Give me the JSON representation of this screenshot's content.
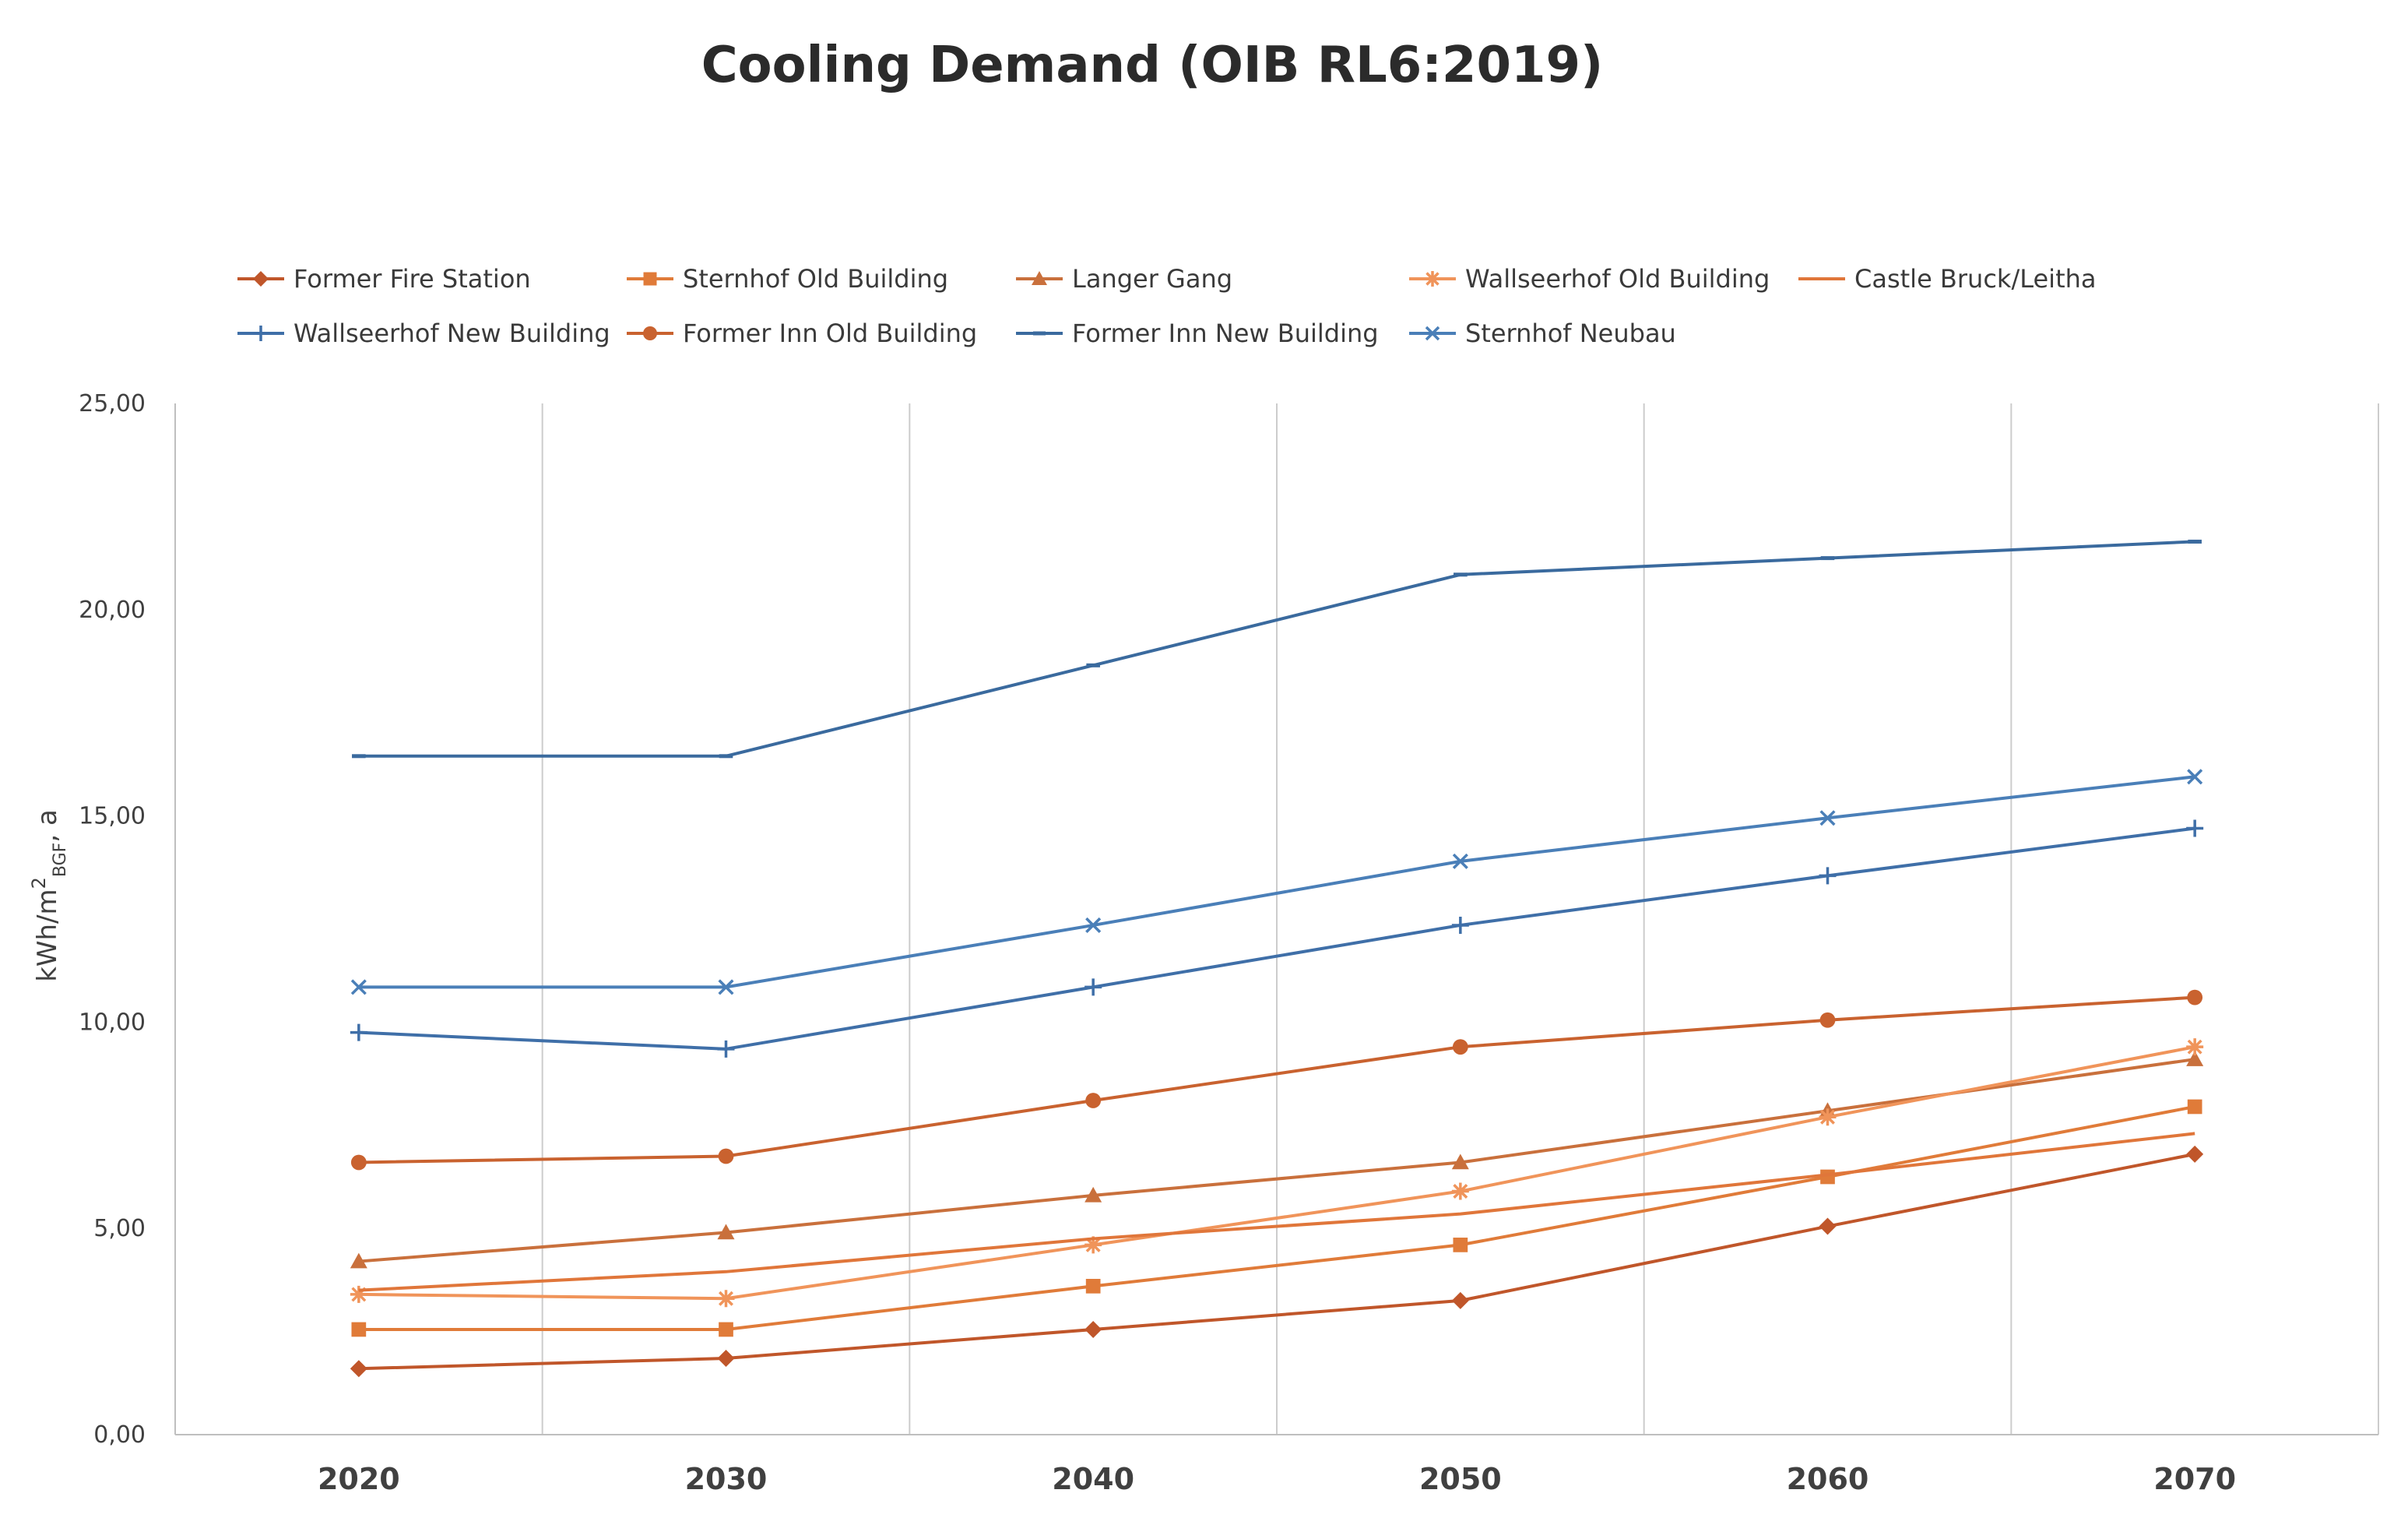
{
  "chart_data": {
    "type": "line",
    "title": "Cooling Demand (OIB RL6:2019)",
    "xlabel": "",
    "ylabel": "kWh/m²BGF, a",
    "ylabel_main": "kWh/m",
    "ylabel_sup": "2",
    "ylabel_sub": "BGF",
    "ylabel_tail": ", a",
    "ylim": [
      0,
      25
    ],
    "y_ticks": [
      0,
      5,
      10,
      15,
      20,
      25
    ],
    "y_tick_labels": [
      "0,00",
      "5,00",
      "10,00",
      "15,00",
      "20,00",
      "25,00"
    ],
    "categories": [
      "2020",
      "2030",
      "2040",
      "2050",
      "2060",
      "2070"
    ],
    "grid": "vertical",
    "legend_position": "top",
    "series": [
      {
        "name": "Former Fire Station",
        "color": "#c0562a",
        "marker": "diamond",
        "values": [
          1.6,
          1.85,
          2.55,
          3.25,
          5.05,
          6.8
        ]
      },
      {
        "name": "Sternhof Old Building",
        "color": "#e07b39",
        "marker": "square",
        "values": [
          2.55,
          2.55,
          3.6,
          4.6,
          6.25,
          7.95
        ]
      },
      {
        "name": "Langer Gang",
        "color": "#c9703c",
        "marker": "triangle",
        "values": [
          4.2,
          4.9,
          5.8,
          6.6,
          7.85,
          9.1
        ]
      },
      {
        "name": "Wallseerhof Old Building",
        "color": "#f0945a",
        "marker": "star",
        "values": [
          3.4,
          3.3,
          4.6,
          5.9,
          7.7,
          9.4
        ]
      },
      {
        "name": "Castle Bruck/Leitha",
        "color": "#e0763a",
        "marker": "none",
        "values": [
          3.5,
          3.95,
          4.75,
          5.35,
          6.3,
          7.3
        ]
      },
      {
        "name": "Wallseerhof New Building",
        "color": "#3f6fa8",
        "marker": "plus",
        "values": [
          9.75,
          9.35,
          10.85,
          12.35,
          13.55,
          14.7
        ]
      },
      {
        "name": "Former Inn Old Building",
        "color": "#c9622f",
        "marker": "circle",
        "values": [
          6.6,
          6.75,
          8.1,
          9.4,
          10.05,
          10.6
        ]
      },
      {
        "name": "Former Inn New Building",
        "color": "#3a6a9e",
        "marker": "dash",
        "values": [
          16.45,
          16.45,
          18.65,
          20.85,
          21.25,
          21.65
        ]
      },
      {
        "name": "Sternhof Neubau",
        "color": "#4a7fb8",
        "marker": "x",
        "values": [
          10.85,
          10.85,
          12.35,
          13.9,
          14.95,
          15.95
        ]
      }
    ]
  }
}
